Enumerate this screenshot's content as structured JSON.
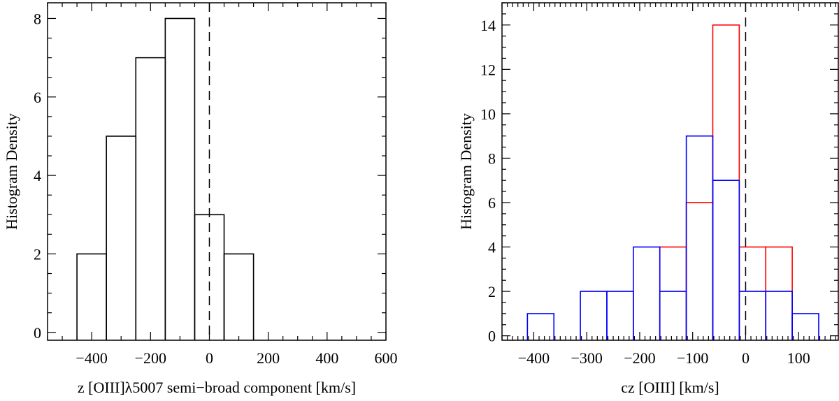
{
  "chart_data": [
    {
      "type": "bar",
      "xlabel": "z [OIII]λ5007 semi−broad component [km/s]",
      "ylabel": "Histogram Density",
      "xlim": [
        -550,
        600
      ],
      "ylim": [
        -0.2,
        8.4
      ],
      "x_ticks": [
        -400,
        -200,
        0,
        200,
        400,
        600
      ],
      "x_tick_labels": [
        "−400",
        "−200",
        "0",
        "200",
        "400",
        "600"
      ],
      "y_ticks": [
        0,
        2,
        4,
        6,
        8
      ],
      "y_tick_labels": [
        "0",
        "2",
        "4",
        "6",
        "8"
      ],
      "reference_line_x": 0,
      "bin_edges": [
        -450,
        -350,
        -250,
        -150,
        -50,
        50,
        150
      ],
      "series": [
        {
          "color": "#000000",
          "values": [
            2,
            5,
            7,
            8,
            3,
            2
          ]
        }
      ]
    },
    {
      "type": "bar",
      "xlabel": "cz [OIII] [km/s]",
      "ylabel": "Histogram Density",
      "xlim": [
        -460,
        175
      ],
      "ylim": [
        -0.2,
        15
      ],
      "x_ticks": [
        -400,
        -300,
        -200,
        -100,
        0,
        100
      ],
      "x_tick_labels": [
        "−400",
        "−300",
        "−200",
        "−100",
        "0",
        "100"
      ],
      "y_ticks": [
        0,
        2,
        4,
        6,
        8,
        10,
        12,
        14
      ],
      "y_tick_labels": [
        "0",
        "2",
        "4",
        "6",
        "8",
        "10",
        "12",
        "14"
      ],
      "reference_line_x": 0,
      "bin_edges": [
        -412,
        -362,
        -312,
        -262,
        -212,
        -162,
        -112,
        -62,
        -12,
        38,
        88,
        138
      ],
      "series": [
        {
          "color": "#ff0000",
          "values": [
            0,
            0,
            0,
            0,
            0,
            4,
            6,
            14,
            4,
            4,
            0
          ]
        },
        {
          "color": "#0000ff",
          "values": [
            1,
            0,
            2,
            2,
            4,
            2,
            9,
            7,
            2,
            2,
            1
          ]
        }
      ]
    }
  ]
}
